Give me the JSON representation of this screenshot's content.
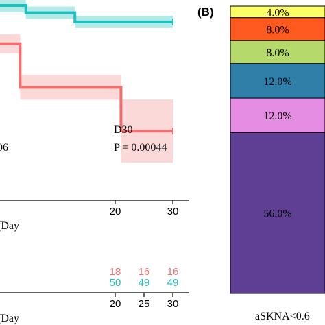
{
  "chart_data": [
    {
      "type": "line",
      "subtype": "step",
      "panel": "A",
      "x_visible": [
        0,
        30
      ],
      "xlabel": "(Day",
      "xticks": [
        "20",
        "30"
      ],
      "left_text_fragment": "06",
      "annotation": {
        "line1": "D30",
        "line2": "P = 0.00044"
      },
      "series": [
        {
          "color": "#1fbfbf",
          "band_color": "#a6e6e4",
          "x": [
            0,
            4.5,
            13,
            30
          ],
          "y": [
            0.985,
            0.965,
            0.94,
            0.94
          ]
        },
        {
          "color": "#f07070",
          "band_color": "#fbd2d2",
          "x": [
            0,
            3.5,
            21,
            30
          ],
          "y": [
            0.88,
            0.76,
            0.64,
            0.64
          ]
        }
      ],
      "ylim": [
        0.45,
        1.0
      ],
      "grid": false
    },
    {
      "type": "table",
      "panel": "A-risk",
      "xlabel": "(Day",
      "xticks": [
        "20",
        "25",
        "30"
      ],
      "rows": [
        {
          "color": "#f07070",
          "values": [
            "18",
            "16",
            "16"
          ]
        },
        {
          "color": "#1fbfbf",
          "values": [
            "50",
            "49",
            "49"
          ]
        }
      ]
    },
    {
      "type": "bar",
      "subtype": "stacked-100",
      "panel_label": "(B)",
      "category_label": "aSKNA<0.6",
      "segments": [
        {
          "value": 4.0,
          "label": "4.0%",
          "color": "#ffff66"
        },
        {
          "value": 8.0,
          "label": "8.0%",
          "color": "#ff5a1f"
        },
        {
          "value": 8.0,
          "label": "8.0%",
          "color": "#b5d96b"
        },
        {
          "value": 12.0,
          "label": "12.0%",
          "color": "#2f7fa8"
        },
        {
          "value": 12.0,
          "label": "12.0%",
          "color": "#e58ce3"
        },
        {
          "value": 56.0,
          "label": "56.0%",
          "color": "#5e3f94"
        }
      ]
    }
  ]
}
